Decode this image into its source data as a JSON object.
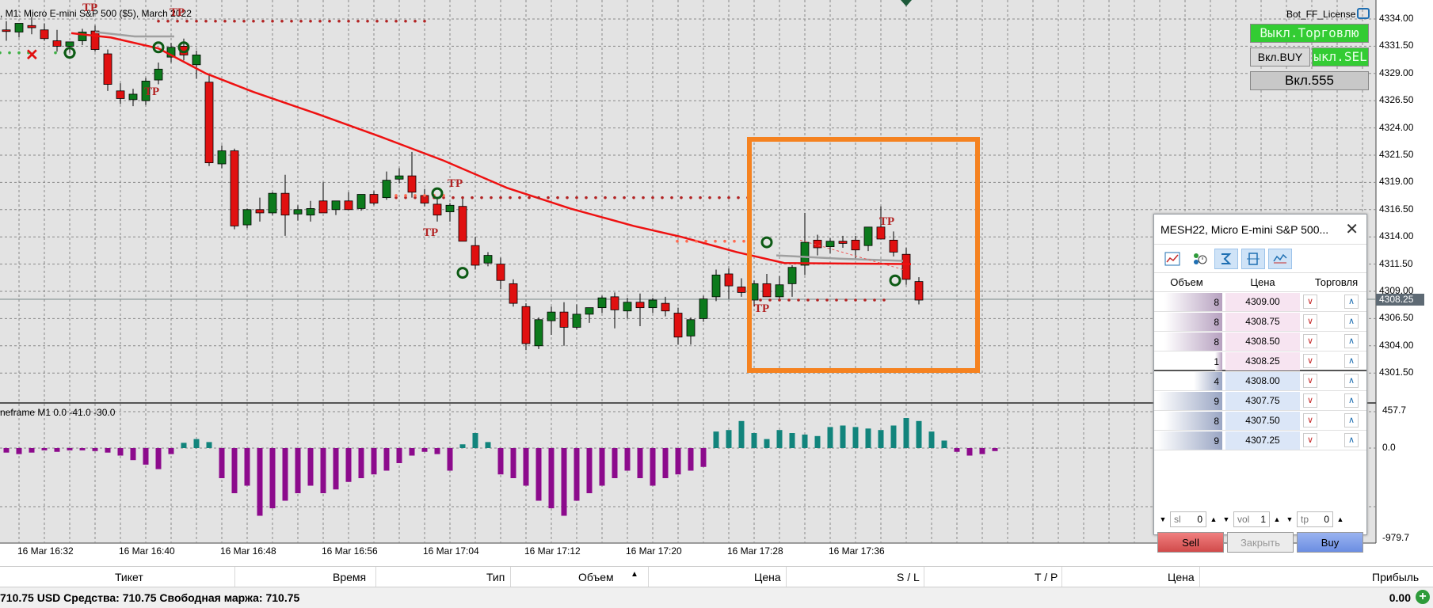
{
  "chart": {
    "title": ", M1:  Micro E-mini S&P 500 ($5), March 2022",
    "background": "#e3e3e3",
    "current_price": "4308.25",
    "price_labels": [
      "4334.00",
      "4331.50",
      "4329.00",
      "4326.50",
      "4324.00",
      "4321.50",
      "4319.00",
      "4316.50",
      "4314.00",
      "4311.50",
      "4309.00",
      "4306.50",
      "4304.00",
      "4301.50"
    ],
    "time_labels": [
      "16 Mar 16:32",
      "16 Mar 16:40",
      "16 Mar 16:48",
      "16 Mar 16:56",
      "16 Mar 17:04",
      "16 Mar 17:12",
      "16 Mar 17:20",
      "16 Mar 17:28",
      "16 Mar 17:36"
    ],
    "tp_marker": "TP",
    "bull_color": "#0c7a1c",
    "bear_color": "#e01010",
    "ma_color": "#ee1111",
    "highlight_color": "#f58220"
  },
  "indicator": {
    "title": "neframe M1 0.0 -41.0 -30.0",
    "scale_labels": [
      "457.7",
      "0.0",
      "-979.7"
    ],
    "positive_color": "#12847c",
    "negative_color": "#8c0a8c"
  },
  "ea_panel": {
    "name": "Bot_FF_License",
    "trade_off": "Выкл.Торговлю",
    "buy_on": "Вкл.BUY",
    "sell_off": "ыкл.SEL",
    "mode": "Вкл.555",
    "active_color": "#33cc33"
  },
  "dom": {
    "title": "MESH22, Micro E-mini S&P 500...",
    "tools": [
      "chart-icon",
      "time-sales-icon",
      "depth-settings-icon",
      "center-icon",
      "ticks-icon"
    ],
    "columns": {
      "volume": "Объем",
      "price": "Цена",
      "trading": "Торговля"
    },
    "asks": [
      {
        "volume": "8",
        "price": "4309.00"
      },
      {
        "volume": "8",
        "price": "4308.75"
      },
      {
        "volume": "8",
        "price": "4308.50"
      },
      {
        "volume": "1",
        "price": "4308.25"
      }
    ],
    "bids": [
      {
        "volume": "4",
        "price": "4308.00"
      },
      {
        "volume": "9",
        "price": "4307.75"
      },
      {
        "volume": "8",
        "price": "4307.50"
      },
      {
        "volume": "9",
        "price": "4307.25"
      }
    ],
    "ask_color": "#f7e4f1",
    "bid_color": "#dbe6f7",
    "inputs": {
      "sl_label": "sl",
      "sl_value": "0",
      "vol_label": "vol",
      "vol_value": "1",
      "tp_label": "tp",
      "tp_value": "0"
    },
    "sell": "Sell",
    "close": "Закрыть",
    "buy": "Buy"
  },
  "terminal": {
    "columns": [
      "Тикет",
      "Время",
      "Тип",
      "Объем",
      "Цена",
      "S / L",
      "T / P",
      "Цена",
      "Прибыль"
    ],
    "status": "710.75 USD  Средства: 710.75  Свободная маржа: 710.75",
    "profit": "0.00"
  }
}
